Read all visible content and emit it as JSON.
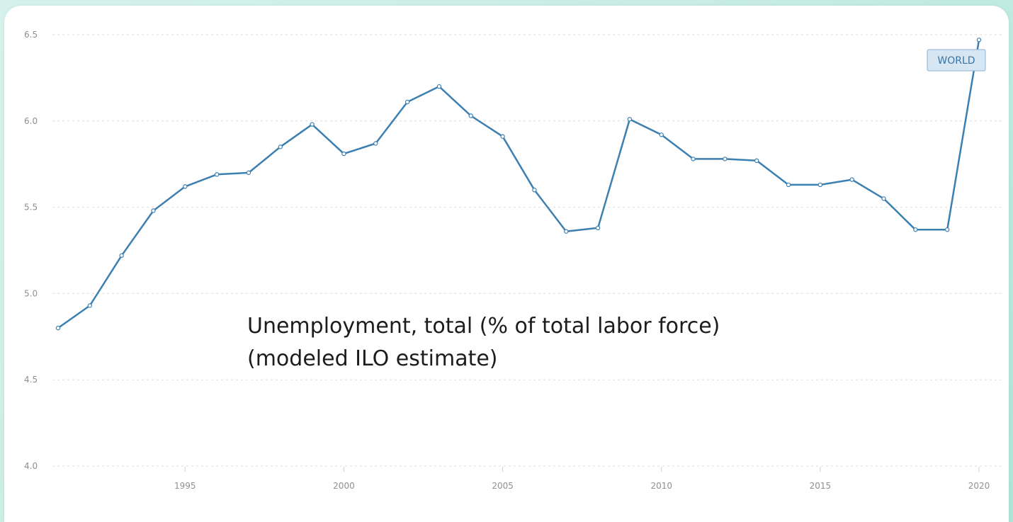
{
  "chart_data": {
    "type": "line",
    "title_lines": [
      "Unemployment, total (% of total labor force)",
      "(modeled ILO estimate)"
    ],
    "series_tag": "WORLD",
    "ylim": [
      4.0,
      6.5
    ],
    "xlim": [
      1991,
      2020
    ],
    "y_ticks": [
      "4.0",
      "4.5",
      "5.0",
      "5.5",
      "6.0",
      "6.5"
    ],
    "x_ticks": [
      "1995",
      "2000",
      "2005",
      "2010",
      "2015",
      "2020"
    ],
    "grid": true,
    "line_color": "#3c7fb1",
    "x": [
      1991,
      1992,
      1993,
      1994,
      1995,
      1996,
      1997,
      1998,
      1999,
      2000,
      2001,
      2002,
      2003,
      2004,
      2005,
      2006,
      2007,
      2008,
      2009,
      2010,
      2011,
      2012,
      2013,
      2014,
      2015,
      2016,
      2017,
      2018,
      2019,
      2020
    ],
    "series": [
      {
        "values": [
          4.8,
          4.93,
          5.22,
          5.48,
          5.62,
          5.69,
          5.7,
          5.85,
          5.98,
          5.81,
          5.87,
          6.11,
          6.2,
          6.03,
          5.91,
          5.6,
          5.36,
          5.38,
          6.01,
          5.92,
          5.78,
          5.78,
          5.77,
          5.63,
          5.63,
          5.66,
          5.55,
          5.37,
          5.37,
          6.47
        ]
      }
    ]
  }
}
